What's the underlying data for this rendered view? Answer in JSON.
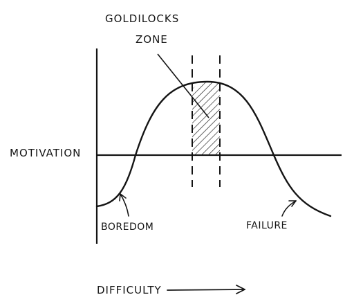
{
  "diagram": {
    "zone_label_line1": "GOLDILOCKS",
    "zone_label_line2": "ZONE",
    "y_axis_label": "MOTIVATION",
    "x_axis_label": "DIFFICULTY",
    "left_label": "BOREDOM",
    "right_label": "FAILURE"
  },
  "colors": {
    "ink": "#141414",
    "background": "#ffffff"
  }
}
